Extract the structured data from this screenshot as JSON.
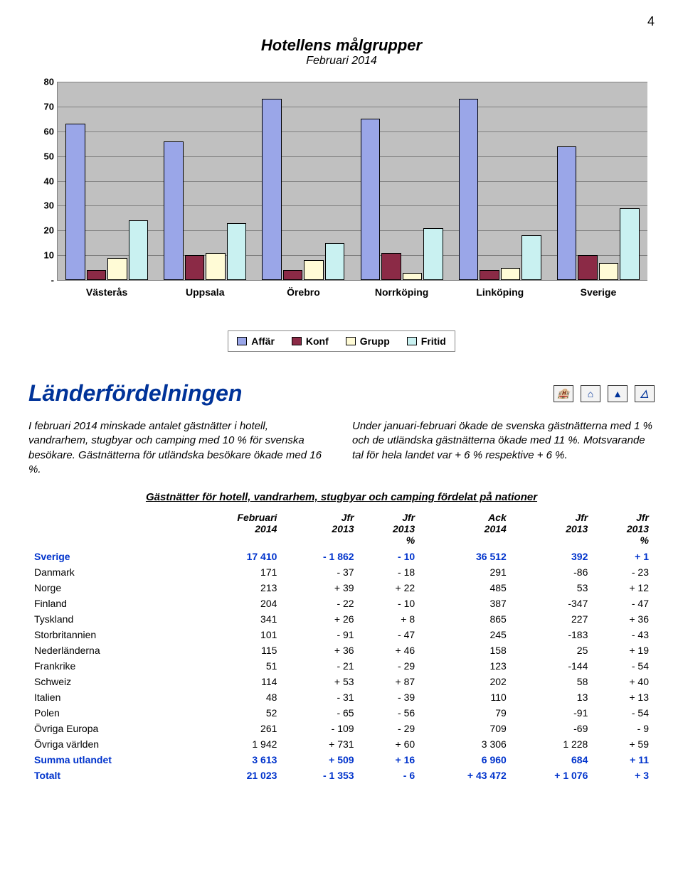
{
  "page_number": "4",
  "title": "Hotellens målgrupper",
  "subtitle": "Februari 2014",
  "chart": {
    "type": "bar",
    "ymax": 80,
    "ystep": 10,
    "yticks": [
      "-",
      "10",
      "20",
      "30",
      "40",
      "50",
      "60",
      "70",
      "80"
    ],
    "categories": [
      "Västerås",
      "Uppsala",
      "Örebro",
      "Norrköping",
      "Linköping",
      "Sverige"
    ],
    "series": [
      {
        "label": "Affär",
        "color": "#9aa6e8"
      },
      {
        "label": "Konf",
        "color": "#8b2a46"
      },
      {
        "label": "Grupp",
        "color": "#fffbd6"
      },
      {
        "label": "Fritid",
        "color": "#c9f1f1"
      }
    ],
    "values": [
      [
        63,
        4,
        9,
        24
      ],
      [
        56,
        10,
        11,
        23
      ],
      [
        73,
        4,
        8,
        15
      ],
      [
        65,
        11,
        3,
        21
      ],
      [
        73,
        4,
        5,
        18
      ],
      [
        54,
        10,
        7,
        29
      ]
    ],
    "plot_background": "#c0c0c0",
    "grid_color": "#808080",
    "bar_border": "#000000"
  },
  "section_heading": "Länderfördelningen",
  "icons": [
    "🏨",
    "⌂",
    "▲",
    "△"
  ],
  "para_left": "I februari 2014 minskade antalet gästnätter i hotell, vandrarhem, stugbyar och camping med 10 % för svenska besökare. Gästnätterna för utländska besökare ökade med 16 %.",
  "para_right": "Under januari-februari ökade de svenska gästnätterna med 1 % och de utländska gästnätterna ökade med 11 %. Motsvarande tal för hela landet var + 6 % respektive + 6 %.",
  "table_caption": "Gästnätter för hotell, vandrarhem, stugbyar och camping fördelat på nationer",
  "headers": {
    "c1": "",
    "c2": "Februari\n2014",
    "c3": "Jfr\n2013",
    "c4": "Jfr\n2013\n%",
    "c5": "Ack\n2014",
    "c6": "Jfr\n2013",
    "c7": "Jfr\n2013\n%"
  },
  "rows": [
    {
      "emph": true,
      "cells": [
        "Sverige",
        "17 410",
        "- 1 862",
        "-   10",
        "36 512",
        "392",
        "+  1"
      ]
    },
    {
      "emph": false,
      "cells": [
        "Danmark",
        "171",
        "-  37",
        "-   18",
        "291",
        "-86",
        "-  23"
      ]
    },
    {
      "emph": false,
      "cells": [
        "Norge",
        "213",
        "+  39",
        "+  22",
        "485",
        "53",
        "+  12"
      ]
    },
    {
      "emph": false,
      "cells": [
        "Finland",
        "204",
        "-  22",
        "-   10",
        "387",
        "-347",
        "-  47"
      ]
    },
    {
      "emph": false,
      "cells": [
        "Tyskland",
        "341",
        "+  26",
        "+  8",
        "865",
        "227",
        "+  36"
      ]
    },
    {
      "emph": false,
      "cells": [
        "Storbritannien",
        "101",
        "-  91",
        "-   47",
        "245",
        "-183",
        "-  43"
      ]
    },
    {
      "emph": false,
      "cells": [
        "Nederländerna",
        "115",
        "+  36",
        "+  46",
        "158",
        "25",
        "+  19"
      ]
    },
    {
      "emph": false,
      "cells": [
        "Frankrike",
        "51",
        "-  21",
        "-   29",
        "123",
        "-144",
        "-  54"
      ]
    },
    {
      "emph": false,
      "cells": [
        "Schweiz",
        "114",
        "+  53",
        "+  87",
        "202",
        "58",
        "+  40"
      ]
    },
    {
      "emph": false,
      "cells": [
        "Italien",
        "48",
        "-  31",
        "-   39",
        "110",
        "13",
        "+  13"
      ]
    },
    {
      "emph": false,
      "cells": [
        "Polen",
        "52",
        "-  65",
        "-   56",
        "79",
        "-91",
        "-  54"
      ]
    },
    {
      "emph": false,
      "cells": [
        "Övriga Europa",
        "261",
        "-  109",
        "-   29",
        "709",
        "-69",
        "-  9"
      ]
    },
    {
      "emph": false,
      "cells": [
        "Övriga världen",
        "1 942",
        "+  731",
        "+  60",
        "3 306",
        "1 228",
        "+  59"
      ]
    },
    {
      "emph": true,
      "cells": [
        "Summa utlandet",
        "3 613",
        "+  509",
        "+  16",
        "6 960",
        "684",
        "+  11"
      ]
    },
    {
      "emph": true,
      "cells": [
        "Totalt",
        "21 023",
        "- 1 353",
        "-  6",
        "+ 43 472",
        "+ 1 076",
        "+  3"
      ]
    }
  ]
}
